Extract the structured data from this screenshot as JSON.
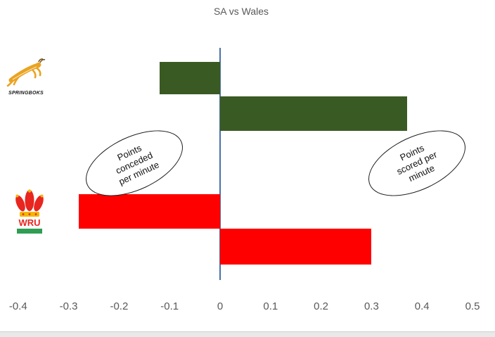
{
  "title": "SA vs Wales",
  "teams": {
    "springboks": {
      "label": "SPRINGBOKS",
      "color": "#3a5a23"
    },
    "wales": {
      "label": "WRU",
      "color": "#ff0000"
    }
  },
  "annotations": {
    "left": {
      "lines": [
        "Points",
        "conceded",
        "per minute"
      ]
    },
    "right": {
      "lines": [
        "Points",
        "scored per",
        "minute"
      ]
    }
  },
  "chart_data": {
    "type": "bar",
    "orientation": "horizontal",
    "title": "SA vs Wales",
    "categories": [
      "Springboks",
      "Wales"
    ],
    "series": [
      {
        "name": "Points conceded per minute",
        "values": [
          -0.12,
          -0.28
        ]
      },
      {
        "name": "Points scored per minute",
        "values": [
          0.37,
          0.3
        ]
      }
    ],
    "category_colors": [
      "#3a5a23",
      "#ff0000"
    ],
    "xlim": [
      -0.45,
      0.55
    ],
    "x_ticks": [
      -0.4,
      -0.3,
      -0.2,
      -0.1,
      0,
      0.1,
      0.2,
      0.3,
      0.4,
      0.5
    ],
    "x_tick_labels": [
      "-0.4",
      "-0.3",
      "-0.2",
      "-0.1",
      "0",
      "0.1",
      "0.2",
      "0.3",
      "0.4",
      "0.5"
    ],
    "grid": false,
    "legend": "none",
    "axis_line_color": "#4a70a8",
    "tick_label_color": "#595959",
    "title_color": "#595959"
  }
}
